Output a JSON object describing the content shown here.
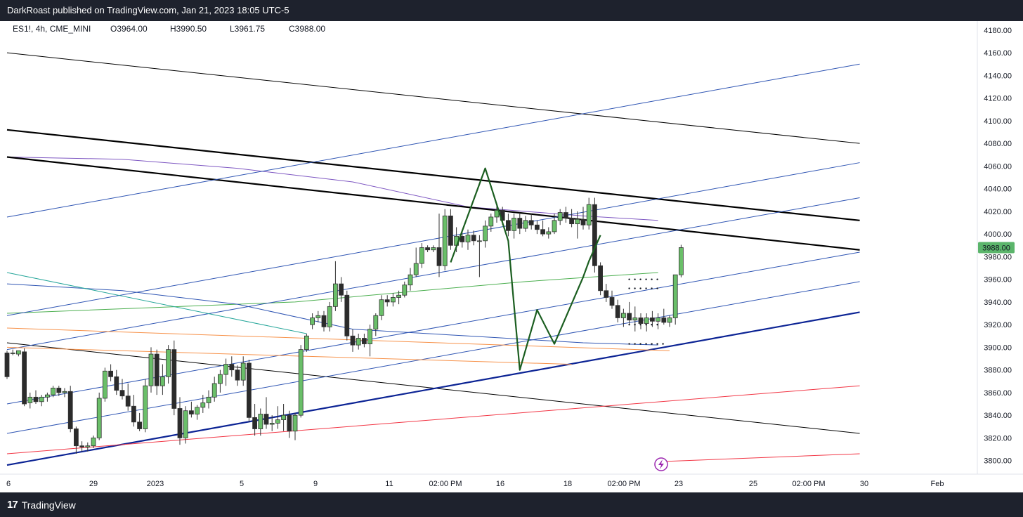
{
  "header": {
    "published": "DarkRoast published on TradingView.com, Jan 21, 2023 18:05 UTC-5"
  },
  "footer": {
    "brand": "TradingView",
    "logo_icon": "tradingview-logo-icon"
  },
  "legend": {
    "symbol": "ES1!, 4h, CME_MINI",
    "open": "O3964.00",
    "high": "H3990.50",
    "low": "L3961.75",
    "close": "C3988.00"
  },
  "colors": {
    "up": "#6abf69",
    "down": "#2b2b2b",
    "price_tag": "#5bb56b",
    "black_line": "#000000",
    "blue_line": "#2f55b3",
    "navy_line": "#0b2394",
    "red_line": "#f23645",
    "orange_line": "#f7924a",
    "green_line": "#4caf50",
    "purple_line": "#7e57c2",
    "pattern": "#1b5e20"
  },
  "chart_data": {
    "type": "candlestick",
    "symbol": "ES1!",
    "interval": "4h",
    "exchange": "CME_MINI",
    "last_price": "3988.00",
    "ylim": [
      3788,
      4188
    ],
    "y_ticks": [
      "3800.00",
      "3820.00",
      "3840.00",
      "3860.00",
      "3880.00",
      "3900.00",
      "3920.00",
      "3940.00",
      "3960.00",
      "3980.00",
      "4000.00",
      "4020.00",
      "4040.00",
      "4060.00",
      "4080.00",
      "4100.00",
      "4120.00",
      "4140.00",
      "4160.00",
      "4180.00"
    ],
    "x_ticks": [
      "6",
      "29",
      "2023",
      "5",
      "9",
      "11",
      "02:00 PM",
      "16",
      "18",
      "02:00 PM",
      "23",
      "25",
      "02:00 PM",
      "30",
      "Feb"
    ],
    "candles": [
      {
        "o": 3895,
        "h": 3897,
        "l": 3872,
        "c": 3874
      },
      {
        "o": 3895,
        "h": 3898,
        "l": 3893,
        "c": 3895
      },
      {
        "o": 3894,
        "h": 3897,
        "l": 3892,
        "c": 3897
      },
      {
        "o": 3896,
        "h": 3899,
        "l": 3848,
        "c": 3850
      },
      {
        "o": 3851,
        "h": 3860,
        "l": 3846,
        "c": 3856
      },
      {
        "o": 3856,
        "h": 3862,
        "l": 3850,
        "c": 3852
      },
      {
        "o": 3852,
        "h": 3858,
        "l": 3848,
        "c": 3856
      },
      {
        "o": 3856,
        "h": 3860,
        "l": 3852,
        "c": 3858
      },
      {
        "o": 3858,
        "h": 3866,
        "l": 3856,
        "c": 3864
      },
      {
        "o": 3864,
        "h": 3866,
        "l": 3857,
        "c": 3860
      },
      {
        "o": 3860,
        "h": 3864,
        "l": 3856,
        "c": 3861
      },
      {
        "o": 3861,
        "h": 3866,
        "l": 3825,
        "c": 3828
      },
      {
        "o": 3828,
        "h": 3830,
        "l": 3806,
        "c": 3813
      },
      {
        "o": 3813,
        "h": 3817,
        "l": 3808,
        "c": 3812
      },
      {
        "o": 3812,
        "h": 3816,
        "l": 3808,
        "c": 3813
      },
      {
        "o": 3813,
        "h": 3822,
        "l": 3811,
        "c": 3820
      },
      {
        "o": 3820,
        "h": 3860,
        "l": 3818,
        "c": 3855
      },
      {
        "o": 3855,
        "h": 3882,
        "l": 3852,
        "c": 3879
      },
      {
        "o": 3879,
        "h": 3885,
        "l": 3870,
        "c": 3874
      },
      {
        "o": 3874,
        "h": 3880,
        "l": 3858,
        "c": 3862
      },
      {
        "o": 3862,
        "h": 3872,
        "l": 3854,
        "c": 3857
      },
      {
        "o": 3857,
        "h": 3868,
        "l": 3844,
        "c": 3848
      },
      {
        "o": 3848,
        "h": 3858,
        "l": 3830,
        "c": 3834
      },
      {
        "o": 3834,
        "h": 3842,
        "l": 3826,
        "c": 3828
      },
      {
        "o": 3828,
        "h": 3872,
        "l": 3825,
        "c": 3866
      },
      {
        "o": 3866,
        "h": 3900,
        "l": 3860,
        "c": 3894
      },
      {
        "o": 3894,
        "h": 3898,
        "l": 3858,
        "c": 3866
      },
      {
        "o": 3866,
        "h": 3885,
        "l": 3858,
        "c": 3874
      },
      {
        "o": 3874,
        "h": 3902,
        "l": 3868,
        "c": 3898
      },
      {
        "o": 3898,
        "h": 3906,
        "l": 3840,
        "c": 3846
      },
      {
        "o": 3846,
        "h": 3856,
        "l": 3814,
        "c": 3820
      },
      {
        "o": 3820,
        "h": 3848,
        "l": 3815,
        "c": 3844
      },
      {
        "o": 3844,
        "h": 3852,
        "l": 3838,
        "c": 3841
      },
      {
        "o": 3841,
        "h": 3849,
        "l": 3836,
        "c": 3847
      },
      {
        "o": 3847,
        "h": 3858,
        "l": 3842,
        "c": 3851
      },
      {
        "o": 3851,
        "h": 3862,
        "l": 3846,
        "c": 3856
      },
      {
        "o": 3856,
        "h": 3874,
        "l": 3852,
        "c": 3868
      },
      {
        "o": 3868,
        "h": 3880,
        "l": 3860,
        "c": 3876
      },
      {
        "o": 3876,
        "h": 3890,
        "l": 3866,
        "c": 3885
      },
      {
        "o": 3885,
        "h": 3892,
        "l": 3874,
        "c": 3880
      },
      {
        "o": 3880,
        "h": 3884,
        "l": 3866,
        "c": 3871
      },
      {
        "o": 3871,
        "h": 3892,
        "l": 3866,
        "c": 3886
      },
      {
        "o": 3886,
        "h": 3889,
        "l": 3834,
        "c": 3838
      },
      {
        "o": 3838,
        "h": 3850,
        "l": 3822,
        "c": 3828
      },
      {
        "o": 3828,
        "h": 3846,
        "l": 3822,
        "c": 3841
      },
      {
        "o": 3841,
        "h": 3856,
        "l": 3828,
        "c": 3832
      },
      {
        "o": 3832,
        "h": 3840,
        "l": 3826,
        "c": 3833
      },
      {
        "o": 3833,
        "h": 3848,
        "l": 3828,
        "c": 3836
      },
      {
        "o": 3836,
        "h": 3850,
        "l": 3826,
        "c": 3840
      },
      {
        "o": 3840,
        "h": 3844,
        "l": 3820,
        "c": 3826
      },
      {
        "o": 3826,
        "h": 3842,
        "l": 3818,
        "c": 3840
      },
      {
        "o": 3840,
        "h": 3902,
        "l": 3838,
        "c": 3898
      },
      {
        "o": 3898,
        "h": 3912,
        "l": 3896,
        "c": 3910
      },
      {
        "o": 3920,
        "h": 3930,
        "l": 3916,
        "c": 3926
      },
      {
        "o": 3926,
        "h": 3932,
        "l": 3922,
        "c": 3928
      },
      {
        "o": 3928,
        "h": 3932,
        "l": 3914,
        "c": 3918
      },
      {
        "o": 3918,
        "h": 3940,
        "l": 3914,
        "c": 3936
      },
      {
        "o": 3936,
        "h": 3976,
        "l": 3932,
        "c": 3956
      },
      {
        "o": 3956,
        "h": 3962,
        "l": 3940,
        "c": 3946
      },
      {
        "o": 3946,
        "h": 3950,
        "l": 3906,
        "c": 3910
      },
      {
        "o": 3910,
        "h": 3916,
        "l": 3896,
        "c": 3902
      },
      {
        "o": 3902,
        "h": 3912,
        "l": 3898,
        "c": 3908
      },
      {
        "o": 3908,
        "h": 3912,
        "l": 3900,
        "c": 3903
      },
      {
        "o": 3903,
        "h": 3920,
        "l": 3892,
        "c": 3916
      },
      {
        "o": 3916,
        "h": 3930,
        "l": 3910,
        "c": 3928
      },
      {
        "o": 3928,
        "h": 3946,
        "l": 3924,
        "c": 3942
      },
      {
        "o": 3942,
        "h": 3946,
        "l": 3936,
        "c": 3940
      },
      {
        "o": 3940,
        "h": 3948,
        "l": 3936,
        "c": 3944
      },
      {
        "o": 3944,
        "h": 3950,
        "l": 3938,
        "c": 3946
      },
      {
        "o": 3946,
        "h": 3958,
        "l": 3944,
        "c": 3955
      },
      {
        "o": 3955,
        "h": 3970,
        "l": 3950,
        "c": 3964
      },
      {
        "o": 3964,
        "h": 3988,
        "l": 3962,
        "c": 3974
      },
      {
        "o": 3974,
        "h": 3992,
        "l": 3970,
        "c": 3988
      },
      {
        "o": 3988,
        "h": 3990,
        "l": 3984,
        "c": 3986
      },
      {
        "o": 3986,
        "h": 3990,
        "l": 3984,
        "c": 3988
      },
      {
        "o": 3988,
        "h": 4018,
        "l": 3962,
        "c": 3972
      },
      {
        "o": 3972,
        "h": 4022,
        "l": 3968,
        "c": 4016
      },
      {
        "o": 4016,
        "h": 4022,
        "l": 3986,
        "c": 3990
      },
      {
        "o": 3990,
        "h": 4006,
        "l": 3984,
        "c": 3998
      },
      {
        "o": 3998,
        "h": 4004,
        "l": 3988,
        "c": 3993
      },
      {
        "o": 3993,
        "h": 4004,
        "l": 3986,
        "c": 3999
      },
      {
        "o": 3999,
        "h": 4003,
        "l": 3990,
        "c": 3994
      },
      {
        "o": 3994,
        "h": 3999,
        "l": 3962,
        "c": 3994
      },
      {
        "o": 3994,
        "h": 4012,
        "l": 3988,
        "c": 4007
      },
      {
        "o": 4007,
        "h": 4018,
        "l": 4002,
        "c": 4015
      },
      {
        "o": 4015,
        "h": 4026,
        "l": 4010,
        "c": 4021
      },
      {
        "o": 4021,
        "h": 4024,
        "l": 4008,
        "c": 4012
      },
      {
        "o": 4012,
        "h": 4018,
        "l": 3998,
        "c": 4003
      },
      {
        "o": 4003,
        "h": 4018,
        "l": 3996,
        "c": 4014
      },
      {
        "o": 4014,
        "h": 4019,
        "l": 4000,
        "c": 4005
      },
      {
        "o": 4005,
        "h": 4016,
        "l": 4002,
        "c": 4012
      },
      {
        "o": 4012,
        "h": 4018,
        "l": 4004,
        "c": 4008
      },
      {
        "o": 4008,
        "h": 4012,
        "l": 4000,
        "c": 4004
      },
      {
        "o": 4004,
        "h": 4012,
        "l": 3998,
        "c": 4000
      },
      {
        "o": 4000,
        "h": 4006,
        "l": 3996,
        "c": 4002
      },
      {
        "o": 4002,
        "h": 4018,
        "l": 4000,
        "c": 4012
      },
      {
        "o": 4012,
        "h": 4022,
        "l": 4008,
        "c": 4019
      },
      {
        "o": 4019,
        "h": 4024,
        "l": 4010,
        "c": 4014
      },
      {
        "o": 4014,
        "h": 4022,
        "l": 4006,
        "c": 4009
      },
      {
        "o": 4009,
        "h": 4020,
        "l": 3996,
        "c": 4013
      },
      {
        "o": 4013,
        "h": 4024,
        "l": 4004,
        "c": 4008
      },
      {
        "o": 4008,
        "h": 4032,
        "l": 4004,
        "c": 4026
      },
      {
        "o": 4026,
        "h": 4032,
        "l": 3966,
        "c": 3972
      },
      {
        "o": 3972,
        "h": 3975,
        "l": 3946,
        "c": 3950
      },
      {
        "o": 3950,
        "h": 3956,
        "l": 3940,
        "c": 3944
      },
      {
        "o": 3944,
        "h": 3950,
        "l": 3934,
        "c": 3937
      },
      {
        "o": 3937,
        "h": 3942,
        "l": 3922,
        "c": 3926
      },
      {
        "o": 3926,
        "h": 3934,
        "l": 3918,
        "c": 3930
      },
      {
        "o": 3930,
        "h": 3940,
        "l": 3920,
        "c": 3924
      },
      {
        "o": 3924,
        "h": 3936,
        "l": 3914,
        "c": 3926
      },
      {
        "o": 3926,
        "h": 3930,
        "l": 3916,
        "c": 3921
      },
      {
        "o": 3921,
        "h": 3930,
        "l": 3914,
        "c": 3926
      },
      {
        "o": 3926,
        "h": 3932,
        "l": 3918,
        "c": 3923
      },
      {
        "o": 3923,
        "h": 3930,
        "l": 3916,
        "c": 3926
      },
      {
        "o": 3926,
        "h": 3934,
        "l": 3920,
        "c": 3922
      },
      {
        "o": 3922,
        "h": 3928,
        "l": 3918,
        "c": 3926
      },
      {
        "o": 3926,
        "h": 3964,
        "l": 3920,
        "c": 3964
      },
      {
        "o": 3964,
        "h": 3990.5,
        "l": 3961.75,
        "c": 3988
      }
    ],
    "trendlines": [
      {
        "color": "black",
        "width": 1,
        "p1": [
          0,
          4160
        ],
        "p2": [
          148,
          4080
        ]
      },
      {
        "color": "black",
        "width": 2,
        "p1": [
          0,
          4092
        ],
        "p2": [
          148,
          4012
        ]
      },
      {
        "color": "black",
        "width": 2,
        "p1": [
          0,
          4068
        ],
        "p2": [
          148,
          3986
        ]
      },
      {
        "color": "black",
        "width": 1,
        "p1": [
          0,
          3904
        ],
        "p2": [
          148,
          3824
        ]
      },
      {
        "color": "navy",
        "width": 2,
        "p1": [
          0,
          3796
        ],
        "p2": [
          148,
          3931
        ]
      },
      {
        "color": "blue",
        "width": 1,
        "p1": [
          0,
          4015
        ],
        "p2": [
          148,
          4150
        ]
      },
      {
        "color": "blue",
        "width": 1,
        "p1": [
          0,
          3928
        ],
        "p2": [
          148,
          4063
        ]
      },
      {
        "color": "blue",
        "width": 1,
        "p1": [
          0,
          3898
        ],
        "p2": [
          148,
          4032
        ]
      },
      {
        "color": "blue",
        "width": 1,
        "p1": [
          0,
          3850
        ],
        "p2": [
          148,
          3984
        ]
      },
      {
        "color": "blue",
        "width": 1,
        "p1": [
          0,
          3824
        ],
        "p2": [
          148,
          3958
        ]
      },
      {
        "color": "red",
        "width": 1,
        "p1": [
          0,
          3806
        ],
        "p2": [
          148,
          3866
        ]
      },
      {
        "color": "red",
        "width": 1,
        "p1": [
          113,
          3799
        ],
        "p2": [
          148,
          3806
        ]
      },
      {
        "color": "orange",
        "width": 1,
        "p1": [
          0,
          3917
        ],
        "p2": [
          115,
          3897
        ]
      },
      {
        "color": "orange",
        "width": 1,
        "p1": [
          0,
          3900
        ],
        "p2": [
          98,
          3885
        ]
      },
      {
        "color": "teal",
        "width": 1,
        "p1": [
          0,
          3966
        ],
        "p2": [
          52,
          3912
        ]
      }
    ],
    "green_path": [
      [
        77,
        3975
      ],
      [
        83,
        4058
      ],
      [
        87,
        3994
      ],
      [
        89,
        3880
      ],
      [
        92,
        3933
      ],
      [
        95,
        3903
      ],
      [
        100,
        3962
      ],
      [
        101,
        3976
      ],
      [
        103,
        3999
      ]
    ],
    "price_scale_side": "right"
  }
}
